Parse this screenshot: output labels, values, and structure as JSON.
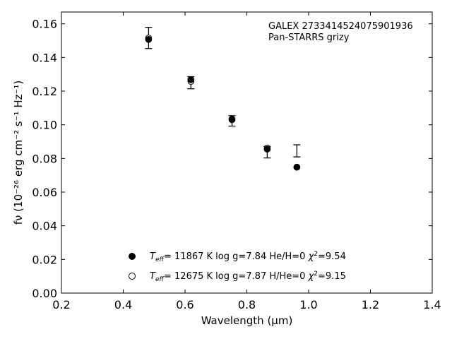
{
  "chart_data": {
    "type": "scatter",
    "xlabel": "Wavelength (μm)",
    "ylabel": "fν (10⁻²⁶ erg cm⁻² s⁻¹ Hz⁻¹)",
    "xlim": [
      0.2,
      1.4
    ],
    "ylim": [
      0.0,
      0.167
    ],
    "xticks": [
      0.2,
      0.4,
      0.6,
      0.8,
      1.0,
      1.2,
      1.4
    ],
    "yticks": [
      0.0,
      0.02,
      0.04,
      0.06,
      0.08,
      0.1,
      0.12,
      0.14,
      0.16
    ],
    "xtick_labels": [
      "0.2",
      "0.4",
      "0.6",
      "0.8",
      "1.0",
      "1.2",
      "1.4"
    ],
    "ytick_labels": [
      "0.00",
      "0.02",
      "0.04",
      "0.06",
      "0.08",
      "0.10",
      "0.12",
      "0.14",
      "0.16"
    ],
    "grid": false,
    "annotations": [
      "GALEX 2733414524075901936",
      "Pan-STARRS grizy"
    ],
    "observed": {
      "x": [
        0.482,
        0.619,
        0.752,
        0.866,
        0.962
      ],
      "y": [
        0.1516,
        0.125,
        0.1023,
        0.0837,
        0.0845
      ],
      "yerr": [
        0.0063,
        0.0036,
        0.0031,
        0.0034,
        0.0036
      ]
    },
    "series": [
      {
        "name": "T_eff= 11867 K  log g=7.84  He/H=0  χ²=9.54",
        "label_parts": {
          "teff": "= 11867 K  log g=7.84  He/H=0  ",
          "chi": "=9.54"
        },
        "marker": "filled-circle",
        "x": [
          0.482,
          0.619,
          0.752,
          0.866,
          0.962
        ],
        "y": [
          0.1507,
          0.1268,
          0.1033,
          0.0855,
          0.0748
        ]
      },
      {
        "name": "T_eff= 12675 K  log g=7.87  H/He=0  χ²=9.15",
        "label_parts": {
          "teff": "= 12675 K  log g=7.87  H/He=0  ",
          "chi": "=9.15"
        },
        "marker": "open-circle",
        "x": [
          0.482,
          0.619,
          0.752,
          0.866,
          0.962
        ],
        "y": [
          0.1515,
          0.1258,
          0.103,
          0.0862,
          0.0748
        ]
      }
    ],
    "legend_placement": "bottom-center"
  }
}
